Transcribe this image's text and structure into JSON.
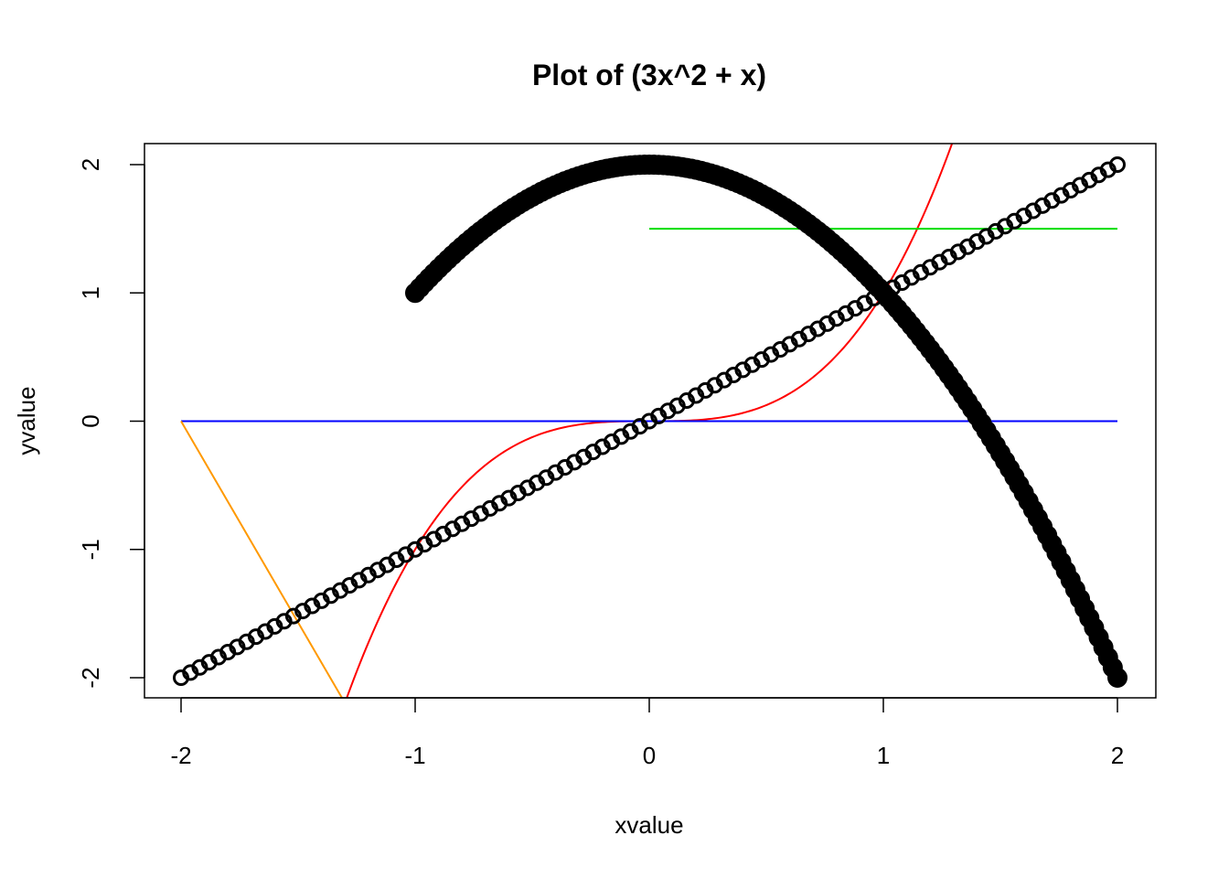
{
  "chart_data": {
    "type": "line",
    "title": "Plot of (3x^2 + x)",
    "xlabel": "xvalue",
    "ylabel": "yvalue",
    "xlim": [
      -2,
      2
    ],
    "ylim": [
      -2,
      2
    ],
    "x_ticks": [
      -2,
      -1,
      0,
      1,
      2
    ],
    "y_ticks": [
      -2,
      -1,
      0,
      1,
      2
    ],
    "x_tick_labels": [
      "-2",
      "-1",
      "0",
      "1",
      "2"
    ],
    "y_tick_labels": [
      "-2",
      "-1",
      "0",
      "1",
      "2"
    ],
    "grid": false,
    "legend": "none",
    "series": [
      {
        "name": "y = x (open circles)",
        "kind": "points-open",
        "color": "#000000",
        "x_from": -2,
        "x_to": 2,
        "n_points": 101,
        "formula": "x"
      },
      {
        "name": "y = 2 - x^2 (filled circles)",
        "kind": "points-filled",
        "color": "#000000",
        "x_from": -1,
        "x_to": 2,
        "n_points": 151,
        "formula": "2 - x^2"
      },
      {
        "name": "y = x^3",
        "kind": "line",
        "color": "#ff0000",
        "x_from": -1.3,
        "x_to": 1.3,
        "n_points": 200,
        "formula": "x^3"
      },
      {
        "name": "y = 0",
        "kind": "line",
        "color": "#0000ff",
        "x": [
          -2,
          2
        ],
        "y": [
          0,
          0
        ]
      },
      {
        "name": "y = 1.5",
        "kind": "line",
        "color": "#00dd00",
        "x": [
          0,
          2
        ],
        "y": [
          1.5,
          1.5
        ]
      },
      {
        "name": "orange segment",
        "kind": "line",
        "color": "#ff9900",
        "x": [
          -2,
          -1.3
        ],
        "y": [
          0,
          -2.197
        ]
      }
    ]
  }
}
